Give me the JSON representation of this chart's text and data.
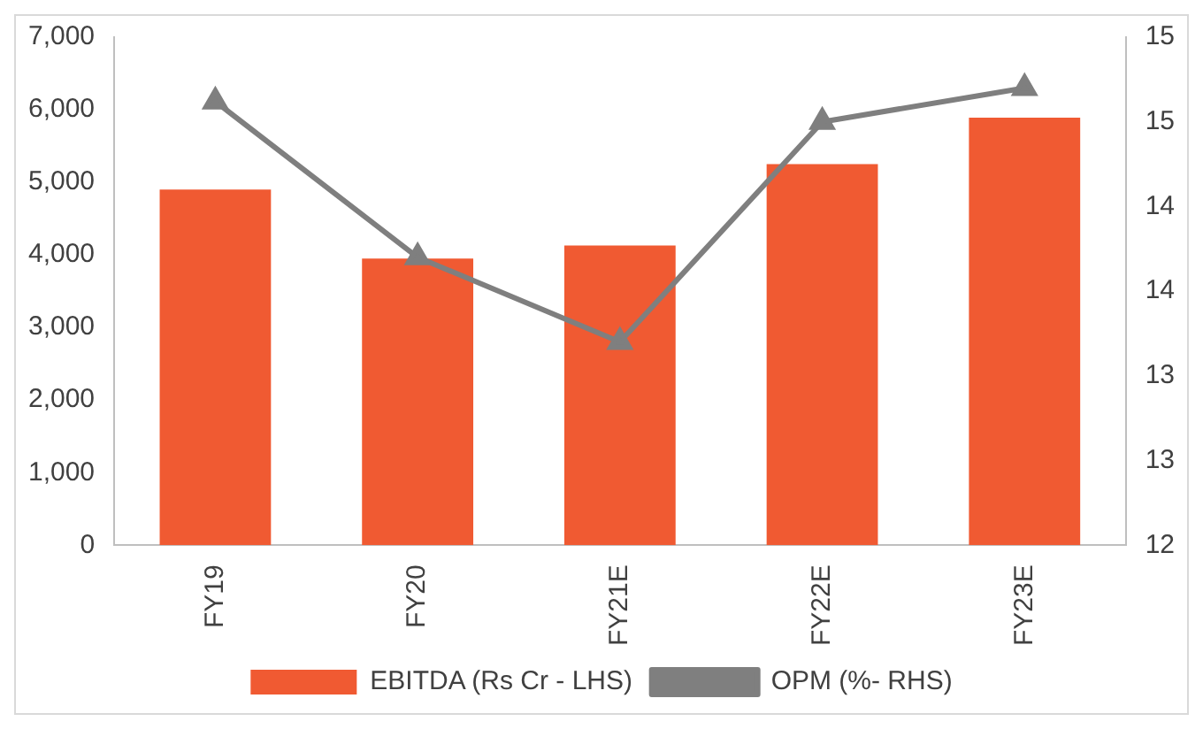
{
  "chart_data": {
    "type": "bar",
    "categories": [
      "FY19",
      "FY20",
      "FY21E",
      "FY22E",
      "FY23E"
    ],
    "series": [
      {
        "name": "EBITDA (Rs Cr - LHS)",
        "color": "#f05a32",
        "values": [
          4900,
          3950,
          4130,
          5250,
          5890
        ]
      },
      {
        "name": "OPM (%- RHS)",
        "type": "line",
        "axis": "y2",
        "color": "#7f7f7f",
        "marker": "triangle",
        "values": [
          14.62,
          13.7,
          13.2,
          14.5,
          14.7
        ]
      }
    ],
    "ylim": [
      0,
      7000
    ],
    "yticks": [
      0,
      {
        "value": 1000,
        "label": "1,000"
      },
      {
        "value": 2000,
        "label": "2,000"
      },
      {
        "value": 3000,
        "label": "3,000"
      },
      {
        "value": 4000,
        "label": "4,000"
      },
      {
        "value": 5000,
        "label": "5,000"
      },
      {
        "value": 6000,
        "label": "6,000"
      },
      {
        "value": 7000,
        "label": "7,000"
      }
    ],
    "y2lim": [
      12,
      15
    ],
    "y2ticks": [
      {
        "value": 12,
        "label": "12"
      },
      {
        "value": 12.5,
        "label": "13"
      },
      {
        "value": 13,
        "label": "13"
      },
      {
        "value": 13.5,
        "label": "14"
      },
      {
        "value": 14,
        "label": "14"
      },
      {
        "value": 14.5,
        "label": "15"
      },
      {
        "value": 15,
        "label": "15"
      }
    ],
    "grid": false,
    "legend": "bottom"
  }
}
